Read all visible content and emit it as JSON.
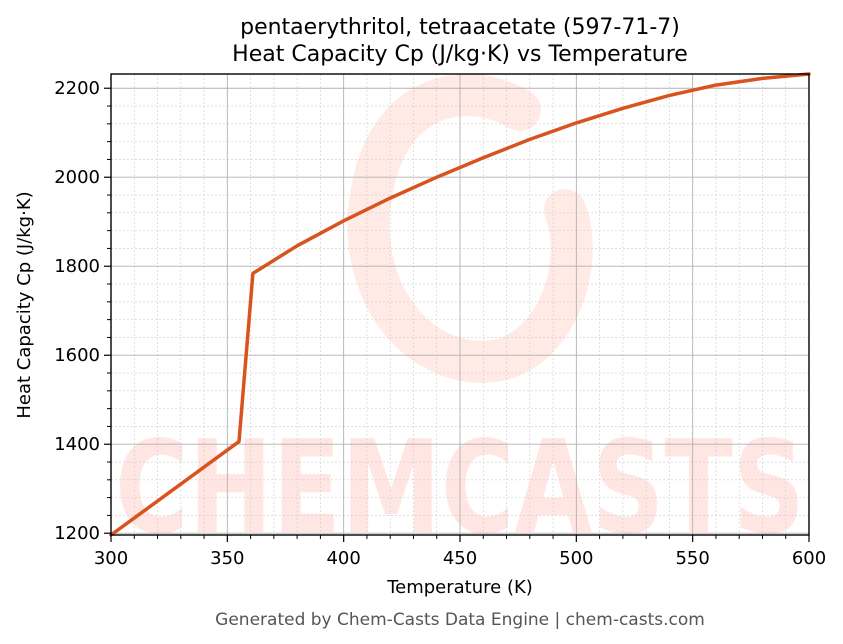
{
  "chart_data": {
    "type": "line",
    "title": "pentaerythritol, tetraacetate (597-71-7)",
    "subtitle": "Heat Capacity Cp (J/kg·K) vs Temperature",
    "xlabel": "Temperature (K)",
    "ylabel": "Heat Capacity Cp (J/kg·K)",
    "xlim": [
      300,
      600
    ],
    "ylim": [
      1196,
      2232
    ],
    "xticks": [
      300,
      350,
      400,
      450,
      500,
      550,
      600
    ],
    "yticks": [
      1200,
      1400,
      1600,
      1800,
      2000,
      2200
    ],
    "grid": true,
    "series": [
      {
        "color": "#d9531e",
        "x": [
          300,
          355,
          361,
          380,
          400,
          420,
          440,
          460,
          480,
          500,
          520,
          540,
          560,
          580,
          600
        ],
        "y": [
          1196,
          1406,
          1784,
          1846,
          1902,
          1953,
          2000,
          2044,
          2085,
          2122,
          2155,
          2184,
          2207,
          2222,
          2232
        ]
      }
    ]
  },
  "watermark": "CHEMCASTS",
  "footer": "Generated by Chem-Casts Data Engine | chem-casts.com"
}
